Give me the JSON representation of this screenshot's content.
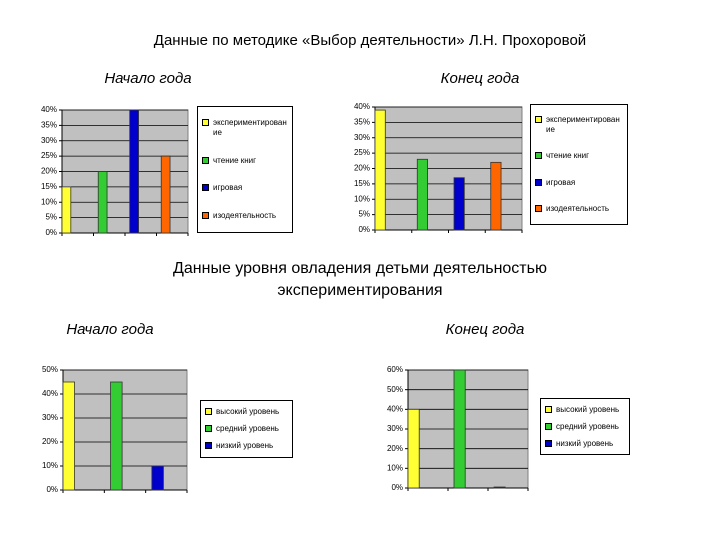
{
  "title": "Данные по методике «Выбор деятельности» Л.Н. Прохоровой",
  "section_title": "Данные уровня овладения детьми деятельностью экспериментирования",
  "chart_data": [
    {
      "type": "bar",
      "title": "Начало года",
      "categories": [
        "экспериментирование",
        "чтение книг",
        "игровая",
        "изодеятельность"
      ],
      "values": [
        15,
        20,
        40,
        25
      ],
      "colors": [
        "#ffff33",
        "#33cc33",
        "#0000cc",
        "#ff6600"
      ],
      "ylim": [
        0,
        40
      ],
      "yticks": [
        {
          "value": 0,
          "label": "0%"
        },
        {
          "value": 5,
          "label": "5%"
        },
        {
          "value": 10,
          "label": "10%"
        },
        {
          "value": 15,
          "label": "15%"
        },
        {
          "value": 20,
          "label": "20%"
        },
        {
          "value": 25,
          "label": "25%"
        },
        {
          "value": 30,
          "label": "30%"
        },
        {
          "value": 35,
          "label": "35%"
        },
        {
          "value": 40,
          "label": "40%"
        }
      ],
      "grid": true,
      "legend": "right"
    },
    {
      "type": "bar",
      "title": "Конец года",
      "categories": [
        "экспериментирование",
        "чтение книг",
        "игровая",
        "изодеятельность"
      ],
      "values": [
        39,
        23,
        17,
        22
      ],
      "colors": [
        "#ffff33",
        "#33cc33",
        "#0000cc",
        "#ff6600"
      ],
      "ylim": [
        0,
        40
      ],
      "yticks": [
        {
          "value": 0,
          "label": "0%"
        },
        {
          "value": 5,
          "label": "5%"
        },
        {
          "value": 10,
          "label": "10%"
        },
        {
          "value": 15,
          "label": "15%"
        },
        {
          "value": 20,
          "label": "20%"
        },
        {
          "value": 25,
          "label": "25%"
        },
        {
          "value": 30,
          "label": "30%"
        },
        {
          "value": 35,
          "label": "35%"
        },
        {
          "value": 40,
          "label": "40%"
        }
      ],
      "grid": true,
      "legend": "right"
    },
    {
      "type": "bar",
      "title": "Начало года",
      "categories": [
        "высокий уровень",
        "средний уровень",
        "низкий уровень"
      ],
      "values": [
        45,
        45,
        10
      ],
      "colors": [
        "#ffff33",
        "#33cc33",
        "#0000cc"
      ],
      "ylim": [
        0,
        50
      ],
      "yticks": [
        {
          "value": 0,
          "label": "0%"
        },
        {
          "value": 10,
          "label": "10%"
        },
        {
          "value": 20,
          "label": "20%"
        },
        {
          "value": 30,
          "label": "30%"
        },
        {
          "value": 40,
          "label": "40%"
        },
        {
          "value": 50,
          "label": "50%"
        }
      ],
      "grid": true,
      "legend": "right"
    },
    {
      "type": "bar",
      "title": "Конец года",
      "categories": [
        "высокий уровень",
        "средний уровень",
        "низкий уровень"
      ],
      "values": [
        40,
        60,
        0.5
      ],
      "colors": [
        "#ffff33",
        "#33cc33",
        "#0000cc"
      ],
      "ylim": [
        0,
        60
      ],
      "yticks": [
        {
          "value": 0,
          "label": "0%"
        },
        {
          "value": 10,
          "label": "10%"
        },
        {
          "value": 20,
          "label": "20%"
        },
        {
          "value": 30,
          "label": "30%"
        },
        {
          "value": 40,
          "label": "40%"
        },
        {
          "value": 50,
          "label": "50%"
        },
        {
          "value": 60,
          "label": "60%"
        }
      ],
      "grid": true,
      "legend": "right"
    }
  ]
}
